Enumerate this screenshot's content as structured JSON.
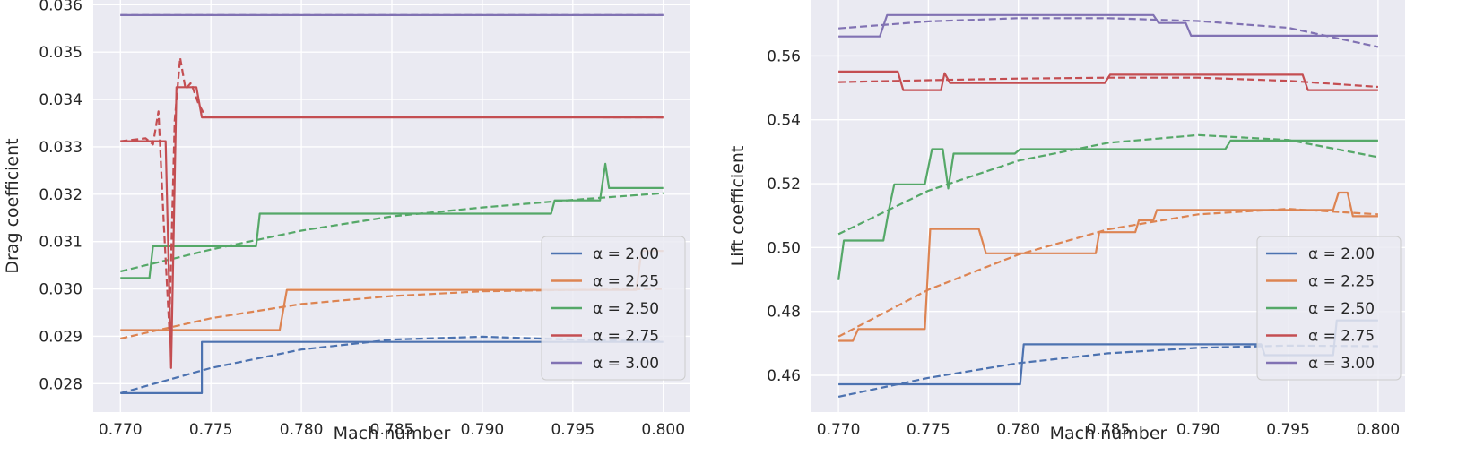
{
  "chart_data": [
    {
      "type": "line",
      "title": "",
      "xlabel": "Mach number",
      "ylabel": "Drag coefficient",
      "xlim": [
        0.7685,
        0.8015
      ],
      "ylim": [
        0.0274,
        0.0361
      ],
      "xticks": [
        0.77,
        0.775,
        0.78,
        0.785,
        0.79,
        0.795,
        0.8
      ],
      "xtick_labels": [
        "0.770",
        "0.775",
        "0.780",
        "0.785",
        "0.790",
        "0.795",
        "0.800"
      ],
      "yticks": [
        0.028,
        0.029,
        0.03,
        0.031,
        0.032,
        0.033,
        0.034,
        0.035,
        0.036
      ],
      "ytick_labels": [
        "0.028",
        "0.029",
        "0.030",
        "0.031",
        "0.032",
        "0.033",
        "0.034",
        "0.035",
        "0.036"
      ],
      "grid": true,
      "legend_position": "bottom-right",
      "legend": [
        "α = 2.00",
        "α = 2.25",
        "α = 2.50",
        "α = 2.75",
        "α = 3.00"
      ],
      "series": [
        {
          "name": "α = 2.00",
          "color": "#4c72b0",
          "style": "solid",
          "points": [
            [
              0.77,
              0.0278
            ],
            [
              0.7745,
              0.0278
            ],
            [
              0.7745,
              0.02888
            ],
            [
              0.8,
              0.02888
            ]
          ]
        },
        {
          "name": "α = 2.00",
          "color": "#4c72b0",
          "style": "dashed",
          "points": [
            [
              0.77,
              0.0278
            ],
            [
              0.775,
              0.02833
            ],
            [
              0.78,
              0.02872
            ],
            [
              0.785,
              0.02893
            ],
            [
              0.79,
              0.02899
            ],
            [
              0.795,
              0.02893
            ],
            [
              0.8,
              0.02889
            ]
          ]
        },
        {
          "name": "α = 2.25",
          "color": "#dd8452",
          "style": "solid",
          "points": [
            [
              0.77,
              0.02913
            ],
            [
              0.7788,
              0.02913
            ],
            [
              0.7792,
              0.02998
            ],
            [
              0.7985,
              0.02998
            ],
            [
              0.7988,
              0.0308
            ],
            [
              0.8,
              0.0308
            ]
          ]
        },
        {
          "name": "α = 2.25",
          "color": "#dd8452",
          "style": "dashed",
          "points": [
            [
              0.77,
              0.02895
            ],
            [
              0.775,
              0.02938
            ],
            [
              0.78,
              0.02968
            ],
            [
              0.785,
              0.02985
            ],
            [
              0.79,
              0.02995
            ],
            [
              0.795,
              0.02998
            ],
            [
              0.8,
              0.03
            ]
          ]
        },
        {
          "name": "α = 2.50",
          "color": "#55a868",
          "style": "solid",
          "points": [
            [
              0.77,
              0.03023
            ],
            [
              0.7716,
              0.03023
            ],
            [
              0.7718,
              0.0309
            ],
            [
              0.7775,
              0.0309
            ],
            [
              0.7777,
              0.03159
            ],
            [
              0.7938,
              0.03159
            ],
            [
              0.794,
              0.03187
            ],
            [
              0.7965,
              0.03187
            ],
            [
              0.7968,
              0.03264
            ],
            [
              0.797,
              0.03213
            ],
            [
              0.8,
              0.03213
            ]
          ]
        },
        {
          "name": "α = 2.50",
          "color": "#55a868",
          "style": "dashed",
          "points": [
            [
              0.77,
              0.03037
            ],
            [
              0.775,
              0.03083
            ],
            [
              0.78,
              0.03123
            ],
            [
              0.785,
              0.03153
            ],
            [
              0.79,
              0.03172
            ],
            [
              0.795,
              0.03188
            ],
            [
              0.8,
              0.03202
            ]
          ]
        },
        {
          "name": "α = 2.75",
          "color": "#c44e52",
          "style": "solid",
          "points": [
            [
              0.77,
              0.03312
            ],
            [
              0.7721,
              0.03312
            ],
            [
              0.7725,
              0.03312
            ],
            [
              0.7728,
              0.02833
            ],
            [
              0.7731,
              0.03426
            ],
            [
              0.7742,
              0.03426
            ],
            [
              0.7745,
              0.03362
            ],
            [
              0.8,
              0.03362
            ]
          ]
        },
        {
          "name": "α = 2.75",
          "color": "#c44e52",
          "style": "dashed",
          "points": [
            [
              0.77,
              0.03312
            ],
            [
              0.7714,
              0.03318
            ],
            [
              0.7718,
              0.03305
            ],
            [
              0.7721,
              0.03375
            ],
            [
              0.7724,
              0.03135
            ],
            [
              0.7727,
              0.02915
            ],
            [
              0.773,
              0.03355
            ],
            [
              0.7733,
              0.03488
            ],
            [
              0.7736,
              0.03422
            ],
            [
              0.7739,
              0.03435
            ],
            [
              0.7743,
              0.03392
            ],
            [
              0.7747,
              0.03364
            ],
            [
              0.8,
              0.03362
            ]
          ]
        },
        {
          "name": "α = 3.00",
          "color": "#8172b3",
          "style": "solid",
          "points": [
            [
              0.77,
              0.03578
            ],
            [
              0.8,
              0.03578
            ]
          ]
        },
        {
          "name": "α = 3.00",
          "color": "#8172b3",
          "style": "dashed",
          "points": [
            [
              0.77,
              0.03578
            ],
            [
              0.8,
              0.03578
            ]
          ]
        }
      ]
    },
    {
      "type": "line",
      "title": "",
      "xlabel": "Mach number",
      "ylabel": "Lift coefficient",
      "xlim": [
        0.7685,
        0.8015
      ],
      "ylim": [
        0.4485,
        0.5775
      ],
      "xticks": [
        0.77,
        0.775,
        0.78,
        0.785,
        0.79,
        0.795,
        0.8
      ],
      "xtick_labels": [
        "0.770",
        "0.775",
        "0.780",
        "0.785",
        "0.790",
        "0.795",
        "0.800"
      ],
      "yticks": [
        0.46,
        0.48,
        0.5,
        0.52,
        0.54,
        0.56
      ],
      "ytick_labels": [
        "0.46",
        "0.48",
        "0.50",
        "0.52",
        "0.54",
        "0.56"
      ],
      "grid": true,
      "legend_position": "bottom-right",
      "legend": [
        "α = 2.00",
        "α = 2.25",
        "α = 2.50",
        "α = 2.75",
        "α = 3.00"
      ],
      "series": [
        {
          "name": "α = 2.00",
          "color": "#4c72b0",
          "style": "solid",
          "points": [
            [
              0.77,
              0.4572
            ],
            [
              0.7801,
              0.4572
            ],
            [
              0.7803,
              0.4697
            ],
            [
              0.7935,
              0.4697
            ],
            [
              0.7937,
              0.4663
            ],
            [
              0.7975,
              0.4663
            ],
            [
              0.7977,
              0.4772
            ],
            [
              0.8,
              0.4772
            ]
          ]
        },
        {
          "name": "α = 2.00",
          "color": "#4c72b0",
          "style": "dashed",
          "points": [
            [
              0.77,
              0.4533
            ],
            [
              0.775,
              0.4592
            ],
            [
              0.78,
              0.4638
            ],
            [
              0.785,
              0.4669
            ],
            [
              0.79,
              0.4686
            ],
            [
              0.795,
              0.4693
            ],
            [
              0.8,
              0.4691
            ]
          ]
        },
        {
          "name": "α = 2.25",
          "color": "#dd8452",
          "style": "solid",
          "points": [
            [
              0.77,
              0.4708
            ],
            [
              0.7708,
              0.4708
            ],
            [
              0.7711,
              0.4745
            ],
            [
              0.7748,
              0.4745
            ],
            [
              0.7751,
              0.5058
            ],
            [
              0.7778,
              0.5058
            ],
            [
              0.7782,
              0.4982
            ],
            [
              0.7843,
              0.4982
            ],
            [
              0.7845,
              0.5048
            ],
            [
              0.7865,
              0.5048
            ],
            [
              0.7867,
              0.5085
            ],
            [
              0.7875,
              0.5085
            ],
            [
              0.7877,
              0.5118
            ],
            [
              0.7975,
              0.5118
            ],
            [
              0.7978,
              0.5172
            ],
            [
              0.7983,
              0.5172
            ],
            [
              0.7986,
              0.5098
            ],
            [
              0.8,
              0.5098
            ]
          ]
        },
        {
          "name": "α = 2.25",
          "color": "#dd8452",
          "style": "dashed",
          "points": [
            [
              0.77,
              0.4721
            ],
            [
              0.775,
              0.4868
            ],
            [
              0.78,
              0.4978
            ],
            [
              0.785,
              0.5057
            ],
            [
              0.79,
              0.5104
            ],
            [
              0.795,
              0.5121
            ],
            [
              0.8,
              0.5104
            ]
          ]
        },
        {
          "name": "α = 2.50",
          "color": "#55a868",
          "style": "solid",
          "points": [
            [
              0.77,
              0.4898
            ],
            [
              0.7703,
              0.5022
            ],
            [
              0.7725,
              0.5022
            ],
            [
              0.7728,
              0.5118
            ],
            [
              0.7731,
              0.5198
            ],
            [
              0.7748,
              0.5198
            ],
            [
              0.7752,
              0.5308
            ],
            [
              0.7758,
              0.5308
            ],
            [
              0.7761,
              0.5185
            ],
            [
              0.7764,
              0.5294
            ],
            [
              0.7798,
              0.5294
            ],
            [
              0.7801,
              0.5308
            ],
            [
              0.7915,
              0.5308
            ],
            [
              0.7918,
              0.5335
            ],
            [
              0.8,
              0.5335
            ]
          ]
        },
        {
          "name": "α = 2.50",
          "color": "#55a868",
          "style": "dashed",
          "points": [
            [
              0.77,
              0.5042
            ],
            [
              0.775,
              0.5178
            ],
            [
              0.78,
              0.5272
            ],
            [
              0.785,
              0.5328
            ],
            [
              0.79,
              0.5352
            ],
            [
              0.795,
              0.5337
            ],
            [
              0.8,
              0.5283
            ]
          ]
        },
        {
          "name": "α = 2.75",
          "color": "#c44e52",
          "style": "solid",
          "points": [
            [
              0.77,
              0.5551
            ],
            [
              0.7733,
              0.5551
            ],
            [
              0.7736,
              0.5493
            ],
            [
              0.7757,
              0.5493
            ],
            [
              0.7759,
              0.5546
            ],
            [
              0.7762,
              0.5515
            ],
            [
              0.7848,
              0.5515
            ],
            [
              0.7851,
              0.5541
            ],
            [
              0.7958,
              0.5541
            ],
            [
              0.7961,
              0.5493
            ],
            [
              0.8,
              0.5493
            ]
          ]
        },
        {
          "name": "α = 2.75",
          "color": "#c44e52",
          "style": "dashed",
          "points": [
            [
              0.77,
              0.5518
            ],
            [
              0.775,
              0.5524
            ],
            [
              0.78,
              0.5529
            ],
            [
              0.785,
              0.5532
            ],
            [
              0.79,
              0.5532
            ],
            [
              0.795,
              0.5522
            ],
            [
              0.8,
              0.5503
            ]
          ]
        },
        {
          "name": "α = 3.00",
          "color": "#8172b3",
          "style": "solid",
          "points": [
            [
              0.77,
              0.5661
            ],
            [
              0.7723,
              0.5661
            ],
            [
              0.7727,
              0.5728
            ],
            [
              0.7875,
              0.5728
            ],
            [
              0.7878,
              0.5703
            ],
            [
              0.7893,
              0.5703
            ],
            [
              0.7896,
              0.5663
            ],
            [
              0.8,
              0.5663
            ]
          ]
        },
        {
          "name": "α = 3.00",
          "color": "#8172b3",
          "style": "dashed",
          "points": [
            [
              0.77,
              0.5686
            ],
            [
              0.775,
              0.5708
            ],
            [
              0.78,
              0.5718
            ],
            [
              0.785,
              0.5718
            ],
            [
              0.79,
              0.5709
            ],
            [
              0.795,
              0.5688
            ],
            [
              0.8,
              0.5628
            ]
          ]
        }
      ]
    }
  ]
}
